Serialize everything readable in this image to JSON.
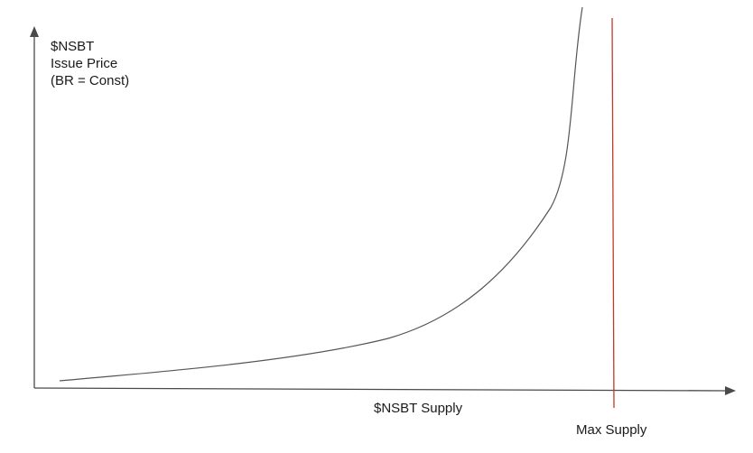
{
  "diagram": {
    "y_axis_label": [
      "$NSBT",
      "Issue Price",
      "(BR = Const)"
    ],
    "x_axis_label": "$NSBT Supply",
    "max_marker_label": "Max Supply",
    "colors": {
      "axis": "#4a4a4a",
      "curve": "#555555",
      "max_line": "#c0392b",
      "text": "#1a1a1a"
    }
  }
}
